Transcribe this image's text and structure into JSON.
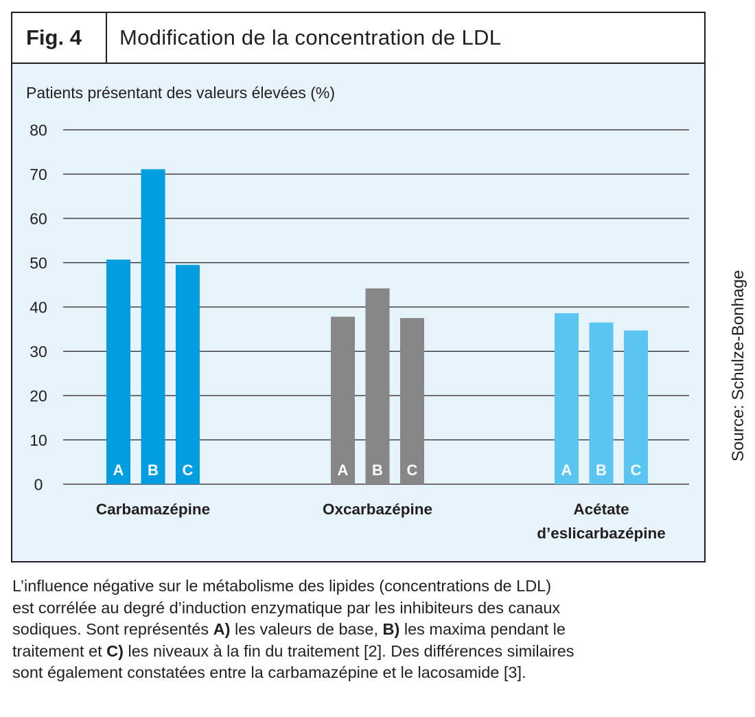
{
  "figure": {
    "label": "Fig. 4",
    "title": "Modification de la concentration de LDL"
  },
  "source": "Source: Schulze-Bonhage",
  "chart_data": {
    "type": "bar",
    "ylabel": "Patients présentant des valeurs élevées (%)",
    "xlabel": "",
    "ylim": [
      0,
      80
    ],
    "yticks": [
      0,
      10,
      20,
      30,
      40,
      50,
      60,
      70,
      80
    ],
    "grid": true,
    "bar_labels": [
      "A",
      "B",
      "C"
    ],
    "groups": [
      {
        "name": "Carbamazépine",
        "label_lines": [
          "Carbamazépine"
        ],
        "color": "#009ee0",
        "values": [
          50.7,
          71.1,
          49.5
        ]
      },
      {
        "name": "Oxcarbazépine",
        "label_lines": [
          "Oxcarbazépine"
        ],
        "color": "#878787",
        "values": [
          37.8,
          44.2,
          37.5
        ]
      },
      {
        "name": "Acétate d’eslicarbazépine",
        "label_lines": [
          "Acétate",
          "d’eslicarbazépine"
        ],
        "color": "#5bc5f2",
        "values": [
          38.6,
          36.5,
          34.7
        ]
      }
    ]
  },
  "caption": {
    "line1": "L’influence négative sur le métabolisme des lipides (concentrations de LDL)",
    "line2": "est corrélée au degré d’induction enzymatique par les inhibiteurs des canaux",
    "line3_a": "sodiques. Sont représentés ",
    "line3_b": "A)",
    "line3_c": " les valeurs de base, ",
    "line3_d": "B)",
    "line3_e": " les maxima pendant le",
    "line4_a": "traitement et ",
    "line4_b": "C)",
    "line4_c": " les niveaux à la fin du traitement [2]. Des différences similaires",
    "line5": "sont également constatées entre la carbamazépine et le lacosamide [3]."
  }
}
